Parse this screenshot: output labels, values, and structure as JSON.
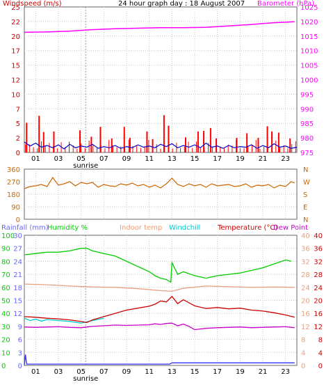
{
  "chart_data": [
    {
      "type": "line",
      "title": "24 hour graph day : 18 August 2007",
      "left_axis_label": "Windspeed (m/s)",
      "right_axis_label": "Barometer (hPa)",
      "left_ylim": [
        0,
        25
      ],
      "left_ticks": [
        "0",
        "2.5",
        "5",
        "7.5",
        "10",
        "12.5",
        "15",
        "17.5",
        "20",
        "22.5",
        "25"
      ],
      "left_tick_labels": [
        "0",
        "2",
        "5",
        "7",
        "10",
        "12",
        "15",
        "17",
        "20",
        "22",
        "25"
      ],
      "right_ylim": [
        975,
        1025
      ],
      "right_ticks": [
        975,
        980,
        985,
        990,
        995,
        1000,
        1005,
        1010,
        1015,
        1020,
        1025
      ],
      "x_hours": [
        0,
        24
      ],
      "x_tick_labels": [
        "01",
        "03",
        "05",
        "07",
        "09",
        "11",
        "13",
        "15",
        "17",
        "19",
        "21",
        "23"
      ],
      "marker_label": "sunrise",
      "marker_hour": 5.4,
      "grid": true,
      "series": [
        {
          "name": "Windspeed (m/s)",
          "color": "#ff0000",
          "axis": "left",
          "style": "gust-bars",
          "x": [
            0.2,
            1.3,
            1.7,
            2.6,
            4.9,
            5.9,
            6.7,
            7.7,
            8.8,
            9.3,
            10.8,
            11.3,
            12.3,
            12.7,
            14.2,
            15.3,
            15.8,
            16.4,
            16.9,
            18.7,
            19.6,
            20.6,
            21.4,
            21.8,
            22.4,
            23.4
          ],
          "values": [
            5.1,
            6.3,
            3.5,
            3.6,
            3.8,
            2.7,
            4.4,
            2.4,
            4.4,
            2.5,
            3.6,
            2.3,
            6.4,
            4.6,
            2.6,
            3.6,
            3.7,
            4.2,
            2.4,
            2.5,
            3.3,
            2.5,
            4.5,
            3.6,
            3.4,
            2.4
          ]
        },
        {
          "name": "Average wind",
          "color": "#0000cc",
          "axis": "left",
          "x": [
            0,
            0.5,
            1,
            1.5,
            2,
            2.5,
            3,
            3.5,
            4,
            4.5,
            5,
            5.5,
            6,
            6.5,
            7,
            7.5,
            8,
            8.5,
            9,
            9.5,
            10,
            10.5,
            11,
            11.5,
            12,
            12.5,
            13,
            13.5,
            14,
            14.5,
            15,
            15.5,
            16,
            16.5,
            17,
            17.5,
            18,
            18.5,
            19,
            19.5,
            20,
            20.5,
            21,
            21.5,
            22,
            22.5,
            23,
            23.5,
            24
          ],
          "values": [
            1.8,
            1.1,
            1.6,
            0.9,
            1.2,
            0.8,
            1.3,
            0.6,
            1.4,
            0.8,
            1.1,
            0.9,
            1.4,
            0.7,
            1.0,
            0.8,
            1.2,
            0.7,
            1.0,
            0.8,
            1.3,
            0.9,
            1.1,
            0.8,
            1.4,
            1.0,
            1.5,
            0.8,
            1.2,
            0.9,
            1.3,
            0.8,
            1.6,
            0.9,
            1.1,
            0.7,
            1.2,
            0.8,
            1.0,
            0.9,
            1.3,
            0.7,
            1.2,
            0.8,
            1.5,
            0.9,
            1.1,
            0.7,
            0.9
          ]
        },
        {
          "name": "Barometer (hPa)",
          "color": "#ff00ff",
          "axis": "right",
          "x": [
            0,
            2,
            4,
            6,
            8,
            10,
            12,
            14,
            16,
            18,
            20,
            22,
            23.8
          ],
          "values": [
            1016.3,
            1016.4,
            1016.7,
            1017.2,
            1017.5,
            1017.7,
            1017.9,
            1017.9,
            1018.0,
            1018.5,
            1019.0,
            1019.6,
            1019.9
          ]
        }
      ]
    },
    {
      "type": "line",
      "title": "Wind direction",
      "left_ylim": [
        0,
        360
      ],
      "left_ticks": [
        0,
        90,
        180,
        270,
        360
      ],
      "right_tick_labels": [
        "N",
        "W",
        "S",
        "E",
        "N"
      ],
      "x_hours": [
        0,
        24
      ],
      "grid": true,
      "series": [
        {
          "name": "Wind direction",
          "color": "#cc6600",
          "x": [
            0,
            0.5,
            1,
            1.5,
            2,
            2.5,
            3,
            3.5,
            4,
            4.5,
            5,
            5.5,
            6,
            6.5,
            7,
            7.5,
            8,
            8.5,
            9,
            9.5,
            10,
            10.5,
            11,
            11.5,
            12,
            12.5,
            13,
            13.5,
            14,
            14.5,
            15,
            15.5,
            16,
            16.5,
            17,
            17.5,
            18,
            18.5,
            19,
            19.5,
            20,
            20.5,
            21,
            21.5,
            22,
            22.5,
            23,
            23.5,
            23.8
          ],
          "values": [
            220,
            235,
            240,
            250,
            235,
            300,
            245,
            255,
            270,
            240,
            265,
            255,
            265,
            230,
            250,
            240,
            235,
            255,
            245,
            260,
            240,
            250,
            230,
            245,
            225,
            255,
            295,
            250,
            235,
            255,
            240,
            250,
            230,
            255,
            240,
            245,
            250,
            235,
            240,
            255,
            230,
            245,
            240,
            250,
            225,
            245,
            235,
            270,
            260
          ]
        }
      ]
    },
    {
      "type": "line",
      "title": "",
      "labels": {
        "rainfall": "Rainfall (mm)",
        "humidity": "Humidity %",
        "indoor": "Indoor temp",
        "windchill": "Windchill",
        "temperature": "Temperature (°C)",
        "dewpoint": "Dew Point"
      },
      "rain_ticks": [
        "0",
        "3",
        "6",
        "9",
        "12",
        "15",
        "18",
        "21",
        "24",
        "27",
        "30"
      ],
      "humidity_ticks": [
        "0",
        "10",
        "20",
        "30",
        "40",
        "50",
        "60",
        "70",
        "80",
        "90",
        "100"
      ],
      "indoor_ticks": [
        "0",
        "4",
        "8",
        "12",
        "16",
        "20",
        "24",
        "28",
        "32",
        "36",
        "40"
      ],
      "temperature_ticks": [
        "0",
        "4",
        "8",
        "12",
        "16",
        "20",
        "24",
        "28",
        "32",
        "36",
        "40"
      ],
      "temp_ylim": [
        0,
        40
      ],
      "x_hours": [
        0,
        24
      ],
      "x_tick_labels": [
        "01",
        "03",
        "05",
        "07",
        "09",
        "11",
        "13",
        "15",
        "17",
        "19",
        "21",
        "23"
      ],
      "marker_label": "sunrise",
      "marker_hour": 5.4,
      "grid": true,
      "series": [
        {
          "name": "Humidity %",
          "color": "#00cc00",
          "axis": "humidity",
          "x": [
            0,
            1,
            2,
            3,
            4,
            5,
            5.5,
            6,
            7,
            8,
            9,
            10,
            11,
            11.5,
            12,
            12.5,
            12.9,
            13,
            13.5,
            14,
            15,
            16,
            17,
            18,
            19,
            20,
            21,
            22,
            23,
            23.5
          ],
          "values": [
            85,
            86,
            87,
            87,
            88,
            90,
            90,
            88,
            86,
            84,
            80,
            76,
            72,
            69,
            67,
            66,
            64,
            79,
            70,
            72,
            69,
            67,
            69,
            70,
            71,
            73,
            75,
            78,
            81,
            80
          ]
        },
        {
          "name": "Indoor temp",
          "color": "#e8a080",
          "axis": "temperature",
          "x": [
            0,
            2,
            4,
            6,
            8,
            10,
            12,
            13,
            14,
            16,
            18,
            20,
            22,
            23.8
          ],
          "values": [
            25.0,
            24.8,
            24.4,
            24.1,
            24.0,
            23.6,
            23.0,
            22.8,
            23.7,
            24.4,
            24.2,
            24.0,
            24.1,
            24.0
          ]
        },
        {
          "name": "Windchill",
          "color": "#00cccc",
          "axis": "temperature",
          "x": [
            0,
            0.5,
            1,
            1.5,
            2,
            3,
            4,
            5,
            6,
            7
          ],
          "values": [
            14.5,
            13.8,
            14.2,
            13.6,
            14.1,
            13.8,
            13.5,
            13.0,
            13.8,
            14.5
          ]
        },
        {
          "name": "Temperature (°C)",
          "color": "#cc0000",
          "axis": "temperature",
          "x": [
            0,
            1,
            2,
            3,
            4,
            5,
            5.5,
            6,
            7,
            8,
            9,
            10,
            11,
            11.5,
            12,
            12.5,
            13,
            13.5,
            14,
            15,
            16,
            17,
            18,
            19,
            20,
            21,
            22,
            23,
            23.8
          ],
          "values": [
            15.0,
            14.8,
            14.5,
            14.3,
            14.0,
            13.5,
            13.2,
            14.0,
            15.0,
            16.0,
            17.0,
            17.6,
            18.2,
            18.8,
            19.8,
            19.5,
            21.2,
            19.0,
            20.2,
            18.3,
            17.5,
            17.8,
            17.4,
            17.6,
            17.0,
            16.7,
            16.2,
            15.5,
            14.8
          ]
        },
        {
          "name": "Dew Point",
          "color": "#cc00cc",
          "axis": "temperature",
          "x": [
            0,
            1,
            2,
            3,
            4,
            5,
            5.5,
            6,
            7,
            8,
            9,
            10,
            11,
            11.5,
            12,
            12.5,
            13,
            13.5,
            14,
            14.5,
            15,
            16,
            17,
            18,
            19,
            20,
            21,
            22,
            23,
            23.8
          ],
          "values": [
            11.8,
            11.7,
            11.8,
            11.9,
            11.7,
            11.6,
            11.8,
            12.0,
            12.2,
            12.4,
            12.3,
            12.4,
            12.5,
            12.8,
            12.6,
            12.9,
            13.0,
            12.2,
            12.7,
            12.0,
            11.0,
            11.4,
            11.6,
            11.7,
            11.8,
            11.6,
            11.7,
            11.8,
            11.9,
            11.6
          ]
        },
        {
          "name": "Rainfall (mm)",
          "color": "#3333ff",
          "axis": "rain",
          "x": [
            0,
            0.1,
            0.2,
            12.8,
            13.0,
            23.8
          ],
          "values": [
            0,
            2.5,
            0.3,
            0.3,
            0.6,
            0.6
          ]
        }
      ]
    }
  ]
}
